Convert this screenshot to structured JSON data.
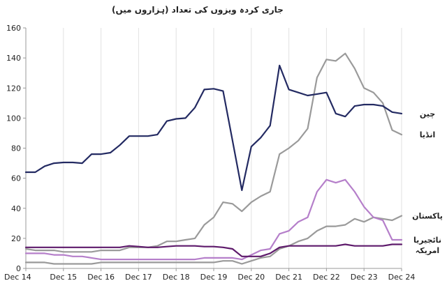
{
  "chart_data": {
    "type": "line",
    "title": "جاری کردہ ویزوں کی تعداد (ہزاروں میں)",
    "xlabel": "",
    "ylabel": "",
    "ylim": [
      0,
      160
    ],
    "yticks": [
      0,
      20,
      40,
      60,
      80,
      100,
      120,
      140,
      160
    ],
    "xlim": [
      0,
      40
    ],
    "xticks": [
      {
        "pos": 0,
        "label": "Dec 14"
      },
      {
        "pos": 4,
        "label": "Dec 15"
      },
      {
        "pos": 8,
        "label": "Dec 16"
      },
      {
        "pos": 12,
        "label": "Dec 17"
      },
      {
        "pos": 16,
        "label": "Dec 18"
      },
      {
        "pos": 20,
        "label": "Dec 19"
      },
      {
        "pos": 24,
        "label": "Dec 20"
      },
      {
        "pos": 28,
        "label": "Dec 21"
      },
      {
        "pos": 32,
        "label": "Dec 22"
      },
      {
        "pos": 36,
        "label": "Dec 23"
      },
      {
        "pos": 40,
        "label": "Dec 24"
      }
    ],
    "grid": "vertical",
    "legend": "end-of-line labels on the right",
    "series": [
      {
        "name": "چین",
        "color": "#232a62",
        "values": [
          64,
          64,
          68,
          70,
          70.5,
          70.5,
          70,
          76,
          76,
          77,
          82,
          88,
          88,
          88,
          89,
          98,
          99.5,
          100,
          107,
          119,
          119.5,
          118,
          85,
          52,
          81,
          87,
          95,
          135,
          119,
          117,
          115,
          116,
          117,
          103,
          101,
          108,
          109,
          109,
          108,
          104,
          103
        ]
      },
      {
        "name": "انڈیا",
        "color": "#9a9a9a",
        "values": [
          13,
          12,
          12,
          12,
          11,
          11,
          11,
          11,
          12,
          12,
          12,
          14,
          14,
          14,
          15,
          18,
          18,
          19,
          20,
          29,
          34,
          44,
          43,
          38,
          44,
          48,
          51,
          76,
          80,
          85,
          93,
          127,
          139,
          138,
          143,
          133,
          120,
          117,
          110,
          92,
          89
        ]
      },
      {
        "name": "پاکستان",
        "color": "#9a9a9a",
        "values": [
          4,
          4,
          4,
          3,
          3,
          3,
          3,
          3,
          4,
          4,
          4,
          4,
          4,
          4,
          4,
          4,
          4,
          4,
          4,
          4,
          4,
          5,
          5,
          3,
          5,
          7,
          8,
          13,
          15,
          18,
          20,
          25,
          28,
          28,
          29,
          33,
          31,
          34,
          33,
          32,
          35
        ]
      },
      {
        "name": "نائجیریا",
        "color": "#b57fca",
        "values": [
          10,
          10,
          10,
          9,
          9,
          8,
          8,
          7,
          6,
          6,
          6,
          6,
          6,
          6,
          6,
          6,
          6,
          6,
          6,
          7,
          7,
          7,
          7,
          6,
          9,
          12,
          13,
          23,
          25,
          31,
          34,
          51,
          59,
          57,
          59,
          51,
          41,
          34,
          32,
          19,
          19
        ]
      },
      {
        "name": "امریکہ",
        "color": "#5e1a6b",
        "values": [
          14,
          14,
          14,
          14,
          14,
          14,
          14,
          14,
          14,
          14,
          14,
          15,
          14.5,
          14,
          14,
          14.5,
          15,
          15,
          15,
          14.5,
          14.5,
          14,
          13,
          8,
          8,
          8,
          10,
          14,
          15,
          15,
          15,
          15,
          15,
          15,
          16,
          15,
          15,
          15,
          15,
          16,
          16
        ]
      }
    ]
  }
}
